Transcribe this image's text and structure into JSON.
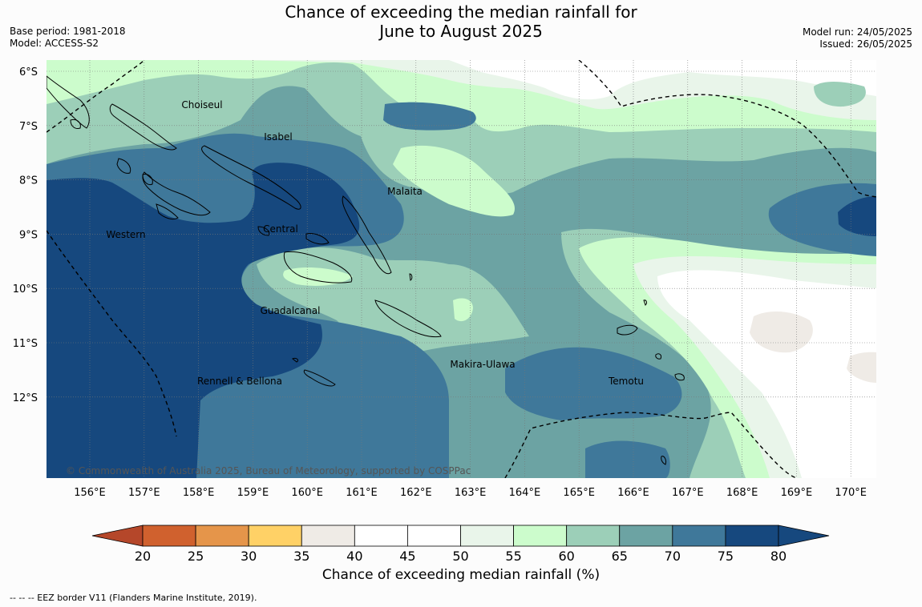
{
  "title": {
    "line1": "Chance of exceeding the median rainfall for",
    "line2": "June to August 2025"
  },
  "meta_left": {
    "base_period": "Base period: 1981-2018",
    "model": "Model: ACCESS-S2"
  },
  "meta_right": {
    "model_run": "Model run: 24/05/2025",
    "issued": "Issued: 26/05/2025"
  },
  "map": {
    "lat_labels": [
      "6°S",
      "7°S",
      "8°S",
      "9°S",
      "10°S",
      "11°S",
      "12°S"
    ],
    "lon_labels": [
      "156°E",
      "157°E",
      "158°E",
      "159°E",
      "160°E",
      "161°E",
      "162°E",
      "163°E",
      "164°E",
      "165°E",
      "166°E",
      "167°E",
      "168°E",
      "169°E",
      "170°E"
    ],
    "provinces": [
      "Choiseul",
      "Isabel",
      "Malaita",
      "Western",
      "Central",
      "Guadalcanal",
      "Makira-Ulawa",
      "Rennell & Bellona",
      "Temotu"
    ],
    "copyright": "© Commonwealth of Australia 2025, Bureau of Meteorology, supported by COSPPac"
  },
  "colorbar": {
    "ticks": [
      "20",
      "25",
      "30",
      "35",
      "40",
      "45",
      "50",
      "55",
      "60",
      "65",
      "70",
      "75",
      "80"
    ],
    "colors": [
      "#b5472a",
      "#d0612e",
      "#e5954a",
      "#ffd166",
      "#efebe6",
      "#ffffff",
      "#ffffff",
      "#e9f5ea",
      "#ccfccc",
      "#9ccfb8",
      "#6ca3a3",
      "#3f789a",
      "#16487e"
    ],
    "label": "Chance of exceeding median rainfall (%)"
  },
  "footnote": "--  --  -- EEZ border V11 (Flanders Marine Institute, 2019)."
}
